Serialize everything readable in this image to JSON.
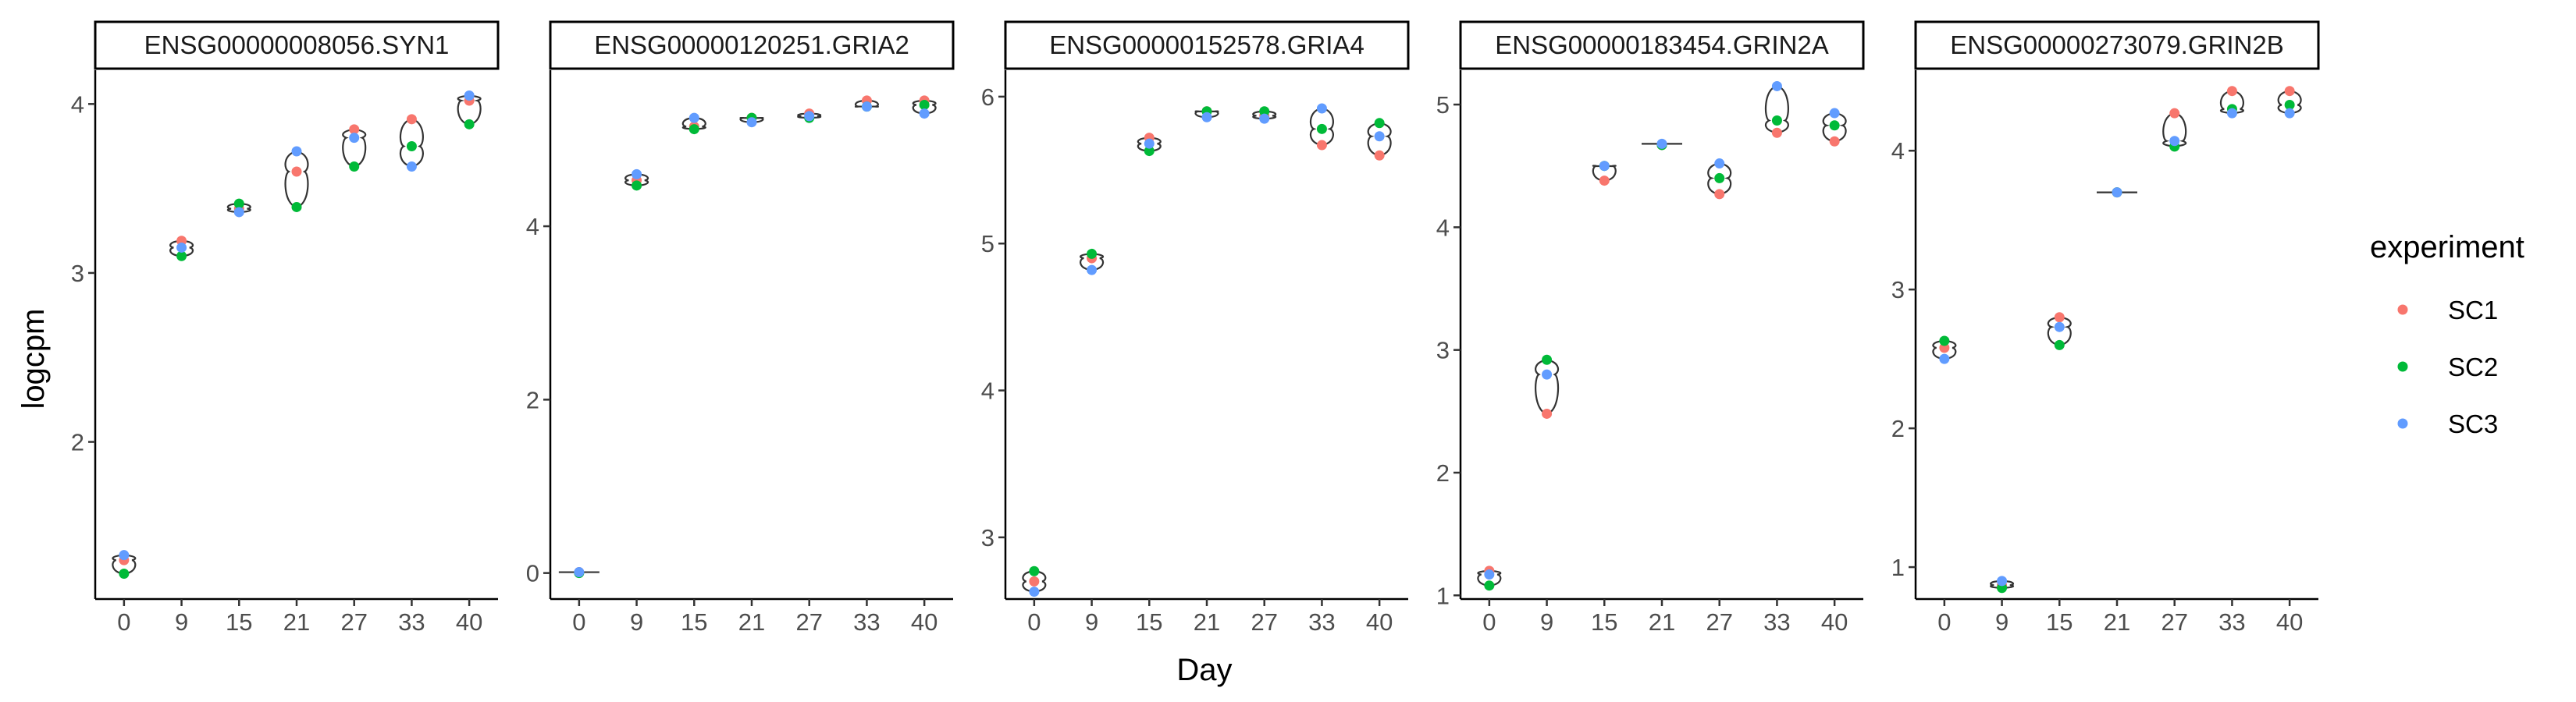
{
  "chart_data": {
    "type": "violin-scatter-facets",
    "xlabel": "Day",
    "ylabel": "logcpm",
    "days": [
      "0",
      "9",
      "15",
      "21",
      "27",
      "33",
      "40"
    ],
    "legend": {
      "title": "experiment",
      "position": "right",
      "entries": [
        {
          "name": "SC1",
          "color": "#F8766D"
        },
        {
          "name": "SC2",
          "color": "#00BA38"
        },
        {
          "name": "SC3",
          "color": "#619CFF"
        }
      ]
    },
    "grid": false,
    "panels": [
      {
        "title": "ENSG00000008056.SYN1",
        "ylim": [
          1.07,
          4.2
        ],
        "yticks": [
          2,
          3,
          4
        ],
        "series": [
          {
            "name": "SC1",
            "values": [
              1.3,
              3.19,
              3.38,
              3.6,
              3.85,
              3.91,
              4.02
            ]
          },
          {
            "name": "SC2",
            "values": [
              1.22,
              3.1,
              3.41,
              3.39,
              3.63,
              3.75,
              3.88
            ]
          },
          {
            "name": "SC3",
            "values": [
              1.33,
              3.15,
              3.36,
              3.72,
              3.8,
              3.63,
              4.05
            ]
          }
        ]
      },
      {
        "title": "ENSG00000120251.GRIA2",
        "ylim": [
          -0.3,
          5.8
        ],
        "yticks": [
          0,
          2,
          4
        ],
        "series": [
          {
            "name": "SC1",
            "values": [
              0.01,
              4.53,
              5.15,
              5.25,
              5.3,
              5.45,
              5.45
            ]
          },
          {
            "name": "SC2",
            "values": [
              0.0,
              4.47,
              5.12,
              5.25,
              5.25,
              5.38,
              5.4
            ]
          },
          {
            "name": "SC3",
            "values": [
              0.01,
              4.6,
              5.25,
              5.2,
              5.27,
              5.38,
              5.3
            ]
          }
        ]
      },
      {
        "title": "ENSG00000152578.GRIA4",
        "ylim": [
          2.58,
          6.18
        ],
        "yticks": [
          3,
          4,
          5,
          6
        ],
        "series": [
          {
            "name": "SC1",
            "values": [
              2.7,
              4.9,
              5.72,
              5.9,
              5.87,
              5.67,
              5.6
            ]
          },
          {
            "name": "SC2",
            "values": [
              2.77,
              4.93,
              5.63,
              5.9,
              5.9,
              5.78,
              5.82
            ]
          },
          {
            "name": "SC3",
            "values": [
              2.63,
              4.82,
              5.68,
              5.86,
              5.85,
              5.92,
              5.73
            ]
          }
        ]
      },
      {
        "title": "ENSG00000183454.GRIN2A",
        "ylim": [
          0.97,
          5.28
        ],
        "yticks": [
          1,
          2,
          3,
          4,
          5
        ],
        "series": [
          {
            "name": "SC1",
            "values": [
              1.2,
              2.48,
              4.38,
              4.67,
              4.27,
              4.77,
              4.7
            ]
          },
          {
            "name": "SC2",
            "values": [
              1.08,
              2.92,
              4.5,
              4.67,
              4.4,
              4.87,
              4.83
            ]
          },
          {
            "name": "SC3",
            "values": [
              1.17,
              2.8,
              4.5,
              4.68,
              4.52,
              5.15,
              4.93
            ]
          }
        ]
      },
      {
        "title": "ENSG00000273079.GRIN2B",
        "ylim": [
          0.77,
          4.58
        ],
        "yticks": [
          1,
          2,
          3,
          4
        ],
        "series": [
          {
            "name": "SC1",
            "values": [
              2.58,
              0.87,
              2.8,
              3.7,
              4.27,
              4.43,
              4.43
            ]
          },
          {
            "name": "SC2",
            "values": [
              2.63,
              0.85,
              2.6,
              3.7,
              4.03,
              4.3,
              4.33
            ]
          },
          {
            "name": "SC3",
            "values": [
              2.5,
              0.9,
              2.73,
              3.7,
              4.07,
              4.27,
              4.27
            ]
          }
        ]
      }
    ]
  }
}
